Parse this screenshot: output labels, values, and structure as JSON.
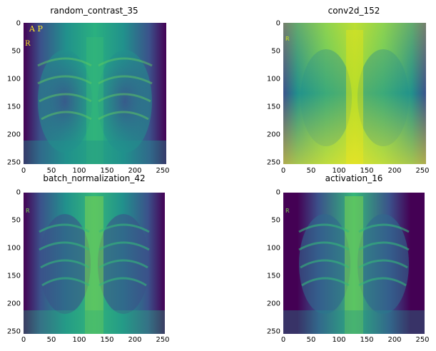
{
  "panels": [
    {
      "title": "random_contrast_35",
      "xticks": [
        "0",
        "50",
        "100",
        "150",
        "200",
        "250"
      ],
      "yticks": [
        "0",
        "50",
        "100",
        "150",
        "200",
        "250"
      ],
      "image": "chest-xray-feature-map",
      "corner_text": "A P R"
    },
    {
      "title": "conv2d_152",
      "xticks": [
        "0",
        "50",
        "100",
        "150",
        "200",
        "250"
      ],
      "yticks": [
        "0",
        "50",
        "100",
        "150",
        "200",
        "250"
      ],
      "image": "chest-xray-feature-map"
    },
    {
      "title": "batch_normalization_42",
      "xticks": [
        "0",
        "50",
        "100",
        "150",
        "200",
        "250"
      ],
      "yticks": [
        "0",
        "50",
        "100",
        "150",
        "200",
        "250"
      ],
      "image": "chest-xray-feature-map"
    },
    {
      "title": "activation_16",
      "xticks": [
        "0",
        "50",
        "100",
        "150",
        "200",
        "250"
      ],
      "yticks": [
        "0",
        "50",
        "100",
        "150",
        "200",
        "250"
      ],
      "image": "chest-xray-feature-map"
    }
  ],
  "colormap": {
    "dark": "#440154",
    "mid_dark": "#3b528b",
    "mid": "#21918c",
    "mid_light": "#5ec962",
    "light": "#fde725"
  }
}
